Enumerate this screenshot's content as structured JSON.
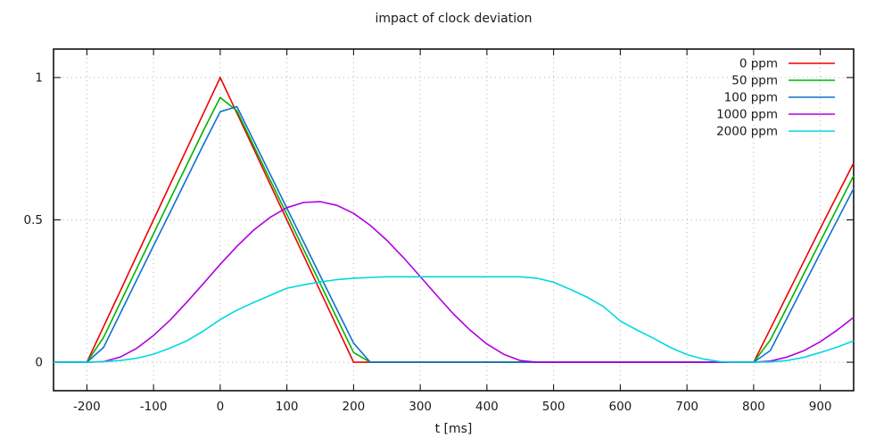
{
  "window": {
    "background": "#ffffff"
  },
  "chart_data": {
    "type": "line",
    "title": "impact of clock deviation",
    "xlabel": "t [ms]",
    "ylabel": "",
    "xlim": [
      -250,
      950
    ],
    "ylim": [
      -0.1,
      1.1
    ],
    "x_ticks": [
      -200,
      -100,
      0,
      100,
      200,
      300,
      400,
      500,
      600,
      700,
      800,
      900
    ],
    "y_ticks": [
      0,
      0.5,
      1
    ],
    "y_tick_labels": [
      "0",
      "0.5",
      "1"
    ],
    "grid": true,
    "grid_style": "dotted-grey",
    "legend_position": "top-right-inside",
    "x_start": -250,
    "x_step": 25,
    "series": [
      {
        "name": "0 ppm",
        "color": "#ee0000",
        "values": [
          0,
          0,
          0,
          0.125,
          0.25,
          0.375,
          0.5,
          0.625,
          0.75,
          0.875,
          1,
          0.875,
          0.75,
          0.625,
          0.5,
          0.375,
          0.25,
          0.125,
          0,
          0,
          0,
          0,
          0,
          0,
          0,
          0,
          0,
          0,
          0,
          0,
          0,
          0,
          0,
          0,
          0,
          0,
          0,
          0,
          0,
          0,
          0,
          0,
          0,
          0.117,
          0.235,
          0.352,
          0.47,
          0.585,
          0.7
        ]
      },
      {
        "name": "50 ppm",
        "color": "#00b400",
        "values": [
          0,
          0,
          0,
          0.087,
          0.209,
          0.33,
          0.451,
          0.573,
          0.694,
          0.815,
          0.93,
          0.883,
          0.761,
          0.64,
          0.519,
          0.397,
          0.276,
          0.155,
          0.034,
          0,
          0,
          0,
          0,
          0,
          0,
          0,
          0,
          0,
          0,
          0,
          0,
          0,
          0,
          0,
          0,
          0,
          0,
          0,
          0,
          0,
          0,
          0,
          0,
          0.078,
          0.193,
          0.309,
          0.424,
          0.54,
          0.655
        ]
      },
      {
        "name": "100 ppm",
        "color": "#1070d0",
        "values": [
          0,
          0,
          0,
          0.052,
          0.171,
          0.29,
          0.409,
          0.527,
          0.646,
          0.765,
          0.88,
          0.898,
          0.779,
          0.66,
          0.541,
          0.423,
          0.304,
          0.185,
          0.067,
          0,
          0,
          0,
          0,
          0,
          0,
          0,
          0,
          0,
          0,
          0,
          0,
          0,
          0,
          0,
          0,
          0,
          0,
          0,
          0,
          0,
          0,
          0,
          0,
          0.041,
          0.155,
          0.269,
          0.383,
          0.497,
          0.61
        ]
      },
      {
        "name": "1000 ppm",
        "color": "#b000e0",
        "values": [
          0,
          0,
          0,
          0.002,
          0.018,
          0.049,
          0.094,
          0.148,
          0.211,
          0.277,
          0.344,
          0.407,
          0.464,
          0.509,
          0.543,
          0.561,
          0.564,
          0.551,
          0.523,
          0.481,
          0.428,
          0.367,
          0.301,
          0.234,
          0.169,
          0.112,
          0.064,
          0.028,
          0.006,
          0,
          0,
          0,
          0,
          0,
          0,
          0,
          0,
          0,
          0,
          0,
          0,
          0,
          0,
          0.004,
          0.018,
          0.04,
          0.072,
          0.112,
          0.158
        ]
      },
      {
        "name": "2000 ppm",
        "color": "#00d8e0",
        "values": [
          0,
          0,
          0,
          0.002,
          0.006,
          0.014,
          0.028,
          0.05,
          0.075,
          0.11,
          0.15,
          0.183,
          0.21,
          0.235,
          0.26,
          0.272,
          0.282,
          0.29,
          0.295,
          0.298,
          0.3,
          0.3,
          0.3,
          0.3,
          0.3,
          0.3,
          0.3,
          0.3,
          0.3,
          0.295,
          0.281,
          0.256,
          0.229,
          0.195,
          0.145,
          0.113,
          0.084,
          0.052,
          0.027,
          0.011,
          0.002,
          0,
          0,
          0.001,
          0.006,
          0.017,
          0.034,
          0.053,
          0.075
        ]
      }
    ]
  }
}
